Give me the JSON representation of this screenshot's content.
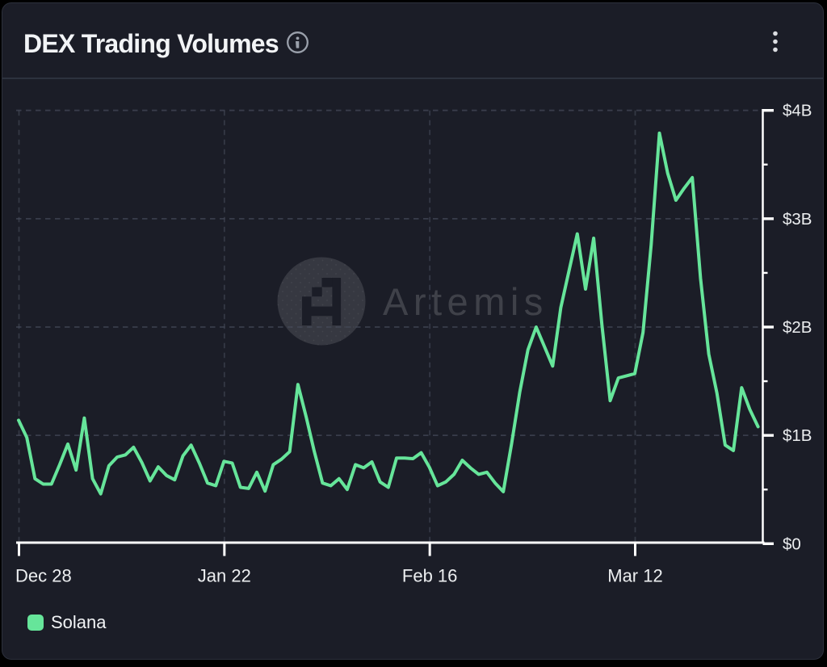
{
  "page": {
    "background": "#000000"
  },
  "card": {
    "background": "#1b1d27",
    "border_color": "#2c303c",
    "divider_color": "#2d323e"
  },
  "header": {
    "title": "DEX Trading Volumes",
    "info_icon": "info-icon",
    "menu_icon": "kebab-menu-icon"
  },
  "watermark": {
    "text": "Artemis"
  },
  "legend": {
    "items": [
      {
        "label": "Solana",
        "color": "#66e59a"
      }
    ]
  },
  "chart_data": {
    "type": "line",
    "title": "DEX Trading Volumes",
    "unit": "USD",
    "ylabel": "",
    "xlabel": "",
    "ylim": [
      0,
      4000000000
    ],
    "y_tick_labels": [
      "$0",
      "$1B",
      "$2B",
      "$3B",
      "$4B"
    ],
    "y_tick_values": [
      0,
      1,
      2,
      3,
      4
    ],
    "y_minor_tick_values": [
      0.5,
      1.5,
      2.5,
      3.5
    ],
    "x_tick_labels": [
      "Dec 28",
      "Jan 22",
      "Feb 16",
      "Mar 12"
    ],
    "x_tick_indices": [
      0,
      25,
      50,
      75
    ],
    "grid": "dashed",
    "legend_position": "bottom-left",
    "axis_color": "#ffffff",
    "grid_color": "#454a59",
    "label_color": "#eceef0",
    "categories": [
      "Dec 28",
      "Dec 29",
      "Dec 30",
      "Dec 31",
      "Jan 1",
      "Jan 2",
      "Jan 3",
      "Jan 4",
      "Jan 5",
      "Jan 6",
      "Jan 7",
      "Jan 8",
      "Jan 9",
      "Jan 10",
      "Jan 11",
      "Jan 12",
      "Jan 13",
      "Jan 14",
      "Jan 15",
      "Jan 16",
      "Jan 17",
      "Jan 18",
      "Jan 19",
      "Jan 20",
      "Jan 21",
      "Jan 22",
      "Jan 23",
      "Jan 24",
      "Jan 25",
      "Jan 26",
      "Jan 27",
      "Jan 28",
      "Jan 29",
      "Jan 30",
      "Jan 31",
      "Feb 1",
      "Feb 2",
      "Feb 3",
      "Feb 4",
      "Feb 5",
      "Feb 6",
      "Feb 7",
      "Feb 8",
      "Feb 9",
      "Feb 10",
      "Feb 11",
      "Feb 12",
      "Feb 13",
      "Feb 14",
      "Feb 15",
      "Feb 16",
      "Feb 17",
      "Feb 18",
      "Feb 19",
      "Feb 20",
      "Feb 21",
      "Feb 22",
      "Feb 23",
      "Feb 24",
      "Feb 25",
      "Feb 26",
      "Feb 27",
      "Feb 28",
      "Feb 29",
      "Mar 1",
      "Mar 2",
      "Mar 3",
      "Mar 4",
      "Mar 5",
      "Mar 6",
      "Mar 7",
      "Mar 8",
      "Mar 9",
      "Mar 10",
      "Mar 11",
      "Mar 12",
      "Mar 13",
      "Mar 14",
      "Mar 15",
      "Mar 16",
      "Mar 17",
      "Mar 18",
      "Mar 19",
      "Mar 20",
      "Mar 21",
      "Mar 22",
      "Mar 23",
      "Mar 24",
      "Mar 25",
      "Mar 26",
      "Mar 27"
    ],
    "series": [
      {
        "name": "Solana",
        "color": "#66e59a",
        "unit": "USD billions",
        "values": [
          1.14,
          0.98,
          0.6,
          0.55,
          0.55,
          0.73,
          0.92,
          0.68,
          1.16,
          0.6,
          0.46,
          0.72,
          0.8,
          0.82,
          0.89,
          0.75,
          0.58,
          0.71,
          0.63,
          0.59,
          0.81,
          0.91,
          0.745,
          0.56,
          0.535,
          0.76,
          0.745,
          0.52,
          0.51,
          0.66,
          0.485,
          0.73,
          0.78,
          0.85,
          1.47,
          1.17,
          0.85,
          0.56,
          0.535,
          0.6,
          0.5,
          0.73,
          0.7,
          0.755,
          0.57,
          0.52,
          0.79,
          0.79,
          0.785,
          0.84,
          0.705,
          0.535,
          0.57,
          0.64,
          0.77,
          0.7,
          0.64,
          0.66,
          0.56,
          0.48,
          0.92,
          1.4,
          1.79,
          2.0,
          1.82,
          1.64,
          2.18,
          2.52,
          2.86,
          2.35,
          2.82,
          2.02,
          1.32,
          1.53,
          1.55,
          1.57,
          1.95,
          2.76,
          3.79,
          3.42,
          3.17,
          3.28,
          3.38,
          2.45,
          1.75,
          1.39,
          0.91,
          0.86,
          1.44,
          1.24,
          1.08
        ]
      }
    ]
  }
}
